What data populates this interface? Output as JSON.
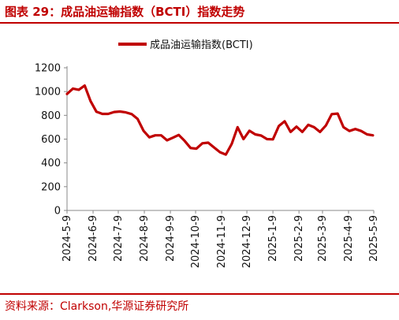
{
  "header": {
    "title": "图表 29：成品油运输指数（BCTI）指数走势"
  },
  "footer": {
    "source": "资料来源：Clarkson,华源证券研究所"
  },
  "colors": {
    "accent": "#c00000",
    "line": "#c00000",
    "axis": "#888888"
  },
  "chart_data": {
    "type": "line",
    "title": "",
    "xlabel": "",
    "ylabel": "",
    "ylim": [
      0,
      1200
    ],
    "yticks": [
      0,
      200,
      400,
      600,
      800,
      1000,
      1200
    ],
    "grid": false,
    "legend_position": "top-center",
    "x_tick_labels": [
      "2024-5-9",
      "2024-6-9",
      "2024-7-9",
      "2024-8-9",
      "2024-9-9",
      "2024-10-9",
      "2024-11-9",
      "2024-12-9",
      "2025-1-9",
      "2025-2-9",
      "2025-3-9",
      "2025-4-9",
      "2025-5-9"
    ],
    "x": [
      "2024-05-09",
      "2024-05-16",
      "2024-05-23",
      "2024-05-30",
      "2024-06-06",
      "2024-06-13",
      "2024-06-20",
      "2024-06-27",
      "2024-07-04",
      "2024-07-11",
      "2024-07-18",
      "2024-07-25",
      "2024-08-01",
      "2024-08-08",
      "2024-08-15",
      "2024-08-22",
      "2024-08-29",
      "2024-09-05",
      "2024-09-12",
      "2024-09-19",
      "2024-09-26",
      "2024-10-03",
      "2024-10-10",
      "2024-10-17",
      "2024-10-24",
      "2024-10-31",
      "2024-11-07",
      "2024-11-14",
      "2024-11-21",
      "2024-11-28",
      "2024-12-05",
      "2024-12-12",
      "2024-12-19",
      "2024-12-26",
      "2025-01-02",
      "2025-01-09",
      "2025-01-16",
      "2025-01-23",
      "2025-01-30",
      "2025-02-06",
      "2025-02-13",
      "2025-02-20",
      "2025-02-27",
      "2025-03-06",
      "2025-03-13",
      "2025-03-20",
      "2025-03-27",
      "2025-04-03",
      "2025-04-10",
      "2025-04-17",
      "2025-04-24",
      "2025-05-01",
      "2025-05-08"
    ],
    "series": [
      {
        "name": "成品油运输指数(BCTI)",
        "values": [
          980,
          1025,
          1015,
          1050,
          920,
          830,
          812,
          812,
          828,
          832,
          825,
          810,
          770,
          670,
          615,
          632,
          632,
          590,
          612,
          635,
          585,
          525,
          520,
          565,
          570,
          530,
          490,
          470,
          560,
          700,
          600,
          670,
          640,
          630,
          600,
          598,
          710,
          750,
          660,
          705,
          660,
          720,
          700,
          660,
          715,
          810,
          815,
          700,
          668,
          685,
          668,
          640,
          632
        ]
      }
    ]
  }
}
